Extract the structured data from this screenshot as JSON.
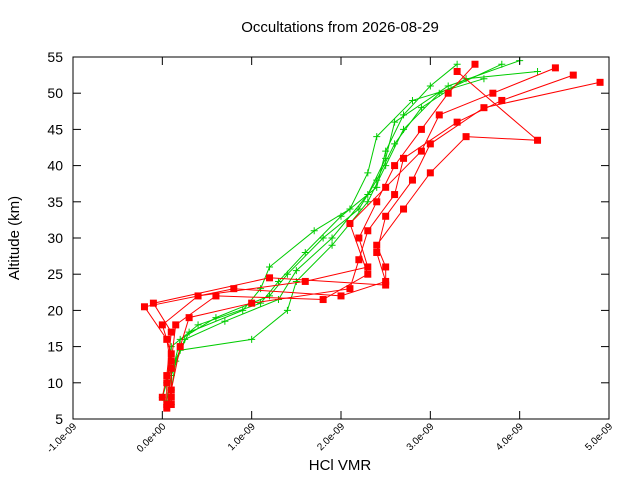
{
  "chart_data": {
    "type": "scatter",
    "title": "Occultations from 2026-08-29",
    "xlabel": "HCl VMR",
    "ylabel": "Altitude (km)",
    "xlim": [
      -1e-09,
      5e-09
    ],
    "ylim": [
      5,
      55
    ],
    "xticks": [
      "-1.0e-09",
      "0.0e+00",
      "1.0e-09",
      "2.0e-09",
      "3.0e-09",
      "4.0e-09",
      "5.0e-09"
    ],
    "xtick_values": [
      -1e-09,
      0,
      1e-09,
      2e-09,
      3e-09,
      4e-09,
      5e-09
    ],
    "yticks": [
      "5",
      "10",
      "15",
      "20",
      "25",
      "30",
      "35",
      "40",
      "45",
      "50",
      "55"
    ],
    "ytick_values": [
      5,
      10,
      15,
      20,
      25,
      30,
      35,
      40,
      45,
      50,
      55
    ],
    "grid": false,
    "legend": "none",
    "series": [
      {
        "color": "#00cc00",
        "marker": "plus",
        "profiles": [
          [
            [
              5e-11,
              7
            ],
            [
              5e-11,
              10
            ],
            [
              1e-10,
              15
            ],
            [
              4e-10,
              18
            ],
            [
              1.1e-09,
              21
            ],
            [
              1.3e-09,
              24
            ],
            [
              1.6e-09,
              28
            ],
            [
              2e-09,
              33
            ],
            [
              2.4e-09,
              37
            ],
            [
              2.5e-09,
              42
            ],
            [
              2.7e-09,
              47
            ],
            [
              3e-09,
              51
            ],
            [
              3.3e-09,
              54
            ]
          ],
          [
            [
              1e-10,
              7
            ],
            [
              1e-10,
              11
            ],
            [
              2e-10,
              16
            ],
            [
              6e-10,
              19
            ],
            [
              1.2e-09,
              22
            ],
            [
              1.4e-09,
              25
            ],
            [
              1.8e-09,
              30
            ],
            [
              2.2e-09,
              34
            ],
            [
              2.4e-09,
              38
            ],
            [
              2.6e-09,
              43
            ],
            [
              2.9e-09,
              48
            ],
            [
              3.4e-09,
              52
            ],
            [
              4.2e-09,
              53
            ]
          ],
          [
            [
              0.0,
              8
            ],
            [
              1e-10,
              12
            ],
            [
              2e-10,
              14.5
            ],
            [
              1e-09,
              16
            ],
            [
              1.4e-09,
              20
            ],
            [
              1.5e-09,
              24
            ],
            [
              1.9e-09,
              29
            ],
            [
              2.3e-09,
              35
            ],
            [
              2.5e-09,
              40
            ],
            [
              2.7e-09,
              45
            ],
            [
              3.1e-09,
              50
            ],
            [
              3.8e-09,
              54
            ]
          ],
          [
            [
              1e-10,
              9
            ],
            [
              1.5e-10,
              13
            ],
            [
              3e-10,
              17
            ],
            [
              9e-10,
              20
            ],
            [
              1.1e-09,
              23
            ],
            [
              1.2e-09,
              26
            ],
            [
              1.7e-09,
              31
            ],
            [
              2.1e-09,
              34
            ],
            [
              2.3e-09,
              39
            ],
            [
              2.4e-09,
              44
            ],
            [
              2.8e-09,
              49
            ],
            [
              3.6e-09,
              52
            ]
          ],
          [
            [
              5e-11,
              7.5
            ],
            [
              1e-10,
              11
            ],
            [
              2.5e-10,
              16
            ],
            [
              7e-10,
              18.5
            ],
            [
              1.3e-09,
              21.5
            ],
            [
              1.5e-09,
              25.5
            ],
            [
              1.9e-09,
              30
            ],
            [
              2.3e-09,
              36
            ],
            [
              2.5e-09,
              41
            ],
            [
              2.6e-09,
              46
            ],
            [
              3.2e-09,
              51
            ],
            [
              4e-09,
              54.5
            ]
          ]
        ]
      },
      {
        "color": "#ff0000",
        "marker": "square",
        "profiles": [
          [
            [
              5e-11,
              7
            ],
            [
              5e-11,
              10
            ],
            [
              1e-10,
              14
            ],
            [
              0.0,
              18
            ],
            [
              4e-10,
              22
            ],
            [
              1.6e-09,
              24
            ],
            [
              2.3e-09,
              26
            ],
            [
              2.2e-09,
              30
            ],
            [
              2.4e-09,
              35
            ],
            [
              2.6e-09,
              40
            ],
            [
              2.9e-09,
              45
            ],
            [
              3.2e-09,
              50
            ],
            [
              3.5e-09,
              54
            ]
          ],
          [
            [
              1e-10,
              8
            ],
            [
              1e-10,
              12
            ],
            [
              5e-11,
              16
            ],
            [
              -2e-10,
              20.5
            ],
            [
              8e-10,
              23
            ],
            [
              2e-09,
              22
            ],
            [
              2.5e-09,
              24
            ],
            [
              2.4e-09,
              28
            ],
            [
              2.5e-09,
              33
            ],
            [
              2.8e-09,
              38
            ],
            [
              3e-09,
              43
            ],
            [
              3.6e-09,
              48
            ],
            [
              4.9e-09,
              51.5
            ]
          ],
          [
            [
              5e-11,
              6.5
            ],
            [
              1e-10,
              9
            ],
            [
              2e-10,
              15
            ],
            [
              3e-10,
              19
            ],
            [
              1e-09,
              21
            ],
            [
              2.1e-09,
              23
            ],
            [
              2.2e-09,
              27
            ],
            [
              2.3e-09,
              31
            ],
            [
              2.6e-09,
              36
            ],
            [
              2.7e-09,
              41
            ],
            [
              3.3e-09,
              46
            ],
            [
              3.8e-09,
              49
            ],
            [
              4.6e-09,
              52.5
            ]
          ],
          [
            [
              0.0,
              8
            ],
            [
              5e-11,
              11
            ],
            [
              1e-10,
              17
            ],
            [
              -1e-10,
              21
            ],
            [
              1.2e-09,
              24.5
            ],
            [
              2.5e-09,
              23.5
            ],
            [
              2.5e-09,
              26
            ],
            [
              2.4e-09,
              29
            ],
            [
              2.7e-09,
              34
            ],
            [
              3e-09,
              39
            ],
            [
              3.4e-09,
              44
            ],
            [
              4.2e-09,
              43.5
            ],
            [
              3.3e-09,
              53
            ]
          ],
          [
            [
              1e-10,
              7
            ],
            [
              1e-10,
              13
            ],
            [
              1.5e-10,
              18
            ],
            [
              6e-10,
              22
            ],
            [
              1.8e-09,
              21.5
            ],
            [
              2.3e-09,
              25
            ],
            [
              2.1e-09,
              32
            ],
            [
              2.5e-09,
              37
            ],
            [
              2.9e-09,
              42
            ],
            [
              3.1e-09,
              47
            ],
            [
              3.7e-09,
              50
            ],
            [
              4.4e-09,
              53.5
            ]
          ]
        ]
      }
    ]
  }
}
